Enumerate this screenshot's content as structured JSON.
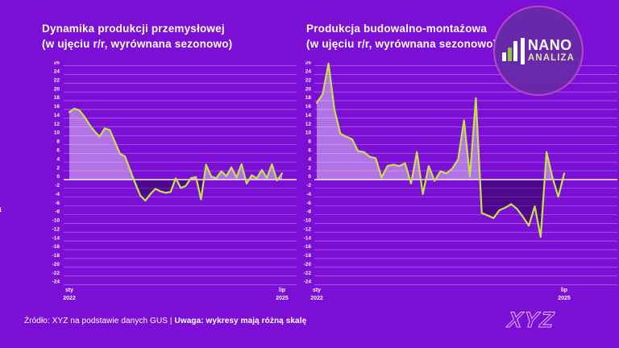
{
  "page": {
    "background_color": "#7B0FD6",
    "edge_fragment_text": "a"
  },
  "logo": {
    "brand_top": "NANO",
    "brand_bottom": "ANALIZA",
    "circle_color": "#682AA8",
    "ring_color": "#EE5AD8",
    "bar_green": "#8DC63F"
  },
  "footer": {
    "source_normal": "Źródło: XYZ na podstawie danych GUS | ",
    "source_bold": "Uwaga: wykresy mają różną skalę"
  },
  "watermark": "XYZ",
  "chart_data": [
    {
      "type": "line",
      "title": "Dynamika produkcji przemysłowej",
      "subtitle": "(w ujęciu r/r, wyrównana sezonowo)",
      "xlabel": "",
      "ylabel": "",
      "ylim": [
        -24,
        26
      ],
      "grid": true,
      "legend": "none",
      "line_color": "#C6E24A",
      "fill_positive": "rgba(255,255,255,0.42)",
      "fill_negative": "rgba(15,0,40,0.42)",
      "grid_color": "rgba(255,240,252,0.42)",
      "zero_line_color": "#ffffff",
      "y_ticks": [
        26,
        24,
        22,
        20,
        18,
        16,
        14,
        12,
        10,
        8,
        6,
        4,
        2,
        0,
        -2,
        -4,
        -6,
        -8,
        -10,
        -12,
        -14,
        -16,
        -18,
        -20,
        -22,
        -24
      ],
      "x_ticks": [
        {
          "top": "sty",
          "bottom": "2022"
        },
        {
          "top": "lip",
          "bottom": "2025"
        }
      ],
      "values": [
        15.4,
        16.2,
        15.8,
        14.3,
        12.5,
        11.0,
        9.8,
        11.7,
        11.3,
        8.6,
        5.9,
        5.3,
        2.2,
        -0.8,
        -3.6,
        -4.8,
        -3.3,
        -2.1,
        -2.7,
        -3.0,
        -2.8,
        0.3,
        -1.9,
        -1.4,
        0.3,
        0.6,
        -4.5,
        3.4,
        0.7,
        0.3,
        1.9,
        0.8,
        2.8,
        0.5,
        3.5,
        -0.9,
        1.0,
        0.3,
        2.2,
        0.4,
        3.5,
        -0.2,
        1.4
      ]
    },
    {
      "type": "line",
      "title": "Produkcja budowalno-montażowa",
      "subtitle": "(w ujęciu r/r, wyrównana sezonowo)",
      "xlabel": "",
      "ylabel": "",
      "ylim": [
        -24,
        26
      ],
      "grid": true,
      "legend": "none",
      "line_color": "#C6E24A",
      "fill_positive": "rgba(255,255,255,0.42)",
      "fill_negative": "rgba(15,0,40,0.42)",
      "grid_color": "rgba(255,240,252,0.42)",
      "zero_line_color": "#ffffff",
      "y_ticks": [
        26,
        24,
        22,
        20,
        18,
        16,
        14,
        12,
        10,
        8,
        6,
        4,
        2,
        0,
        -2,
        -4,
        -6,
        -8,
        -10,
        -12,
        -14,
        -16,
        -18,
        -20,
        -22,
        -24
      ],
      "x_ticks": [
        {
          "top": "sty",
          "bottom": "2022"
        },
        {
          "top": "lip",
          "bottom": "2025"
        }
      ],
      "values": [
        17.5,
        19.5,
        26.5,
        16.0,
        10.5,
        9.8,
        9.2,
        6.5,
        6.3,
        5.2,
        4.9,
        0.5,
        3.1,
        3.4,
        3.1,
        3.7,
        -0.9,
        6.3,
        -3.3,
        3.1,
        -0.3,
        1.9,
        1.4,
        2.5,
        4.6,
        13.5,
        0.7,
        18.6,
        -7.6,
        -8.2,
        -8.8,
        -7.0,
        -6.4,
        -5.6,
        -6.7,
        -8.5,
        -10.5,
        -6.1,
        -13.1,
        6.3,
        0.5,
        -3.9,
        1.4
      ]
    }
  ]
}
